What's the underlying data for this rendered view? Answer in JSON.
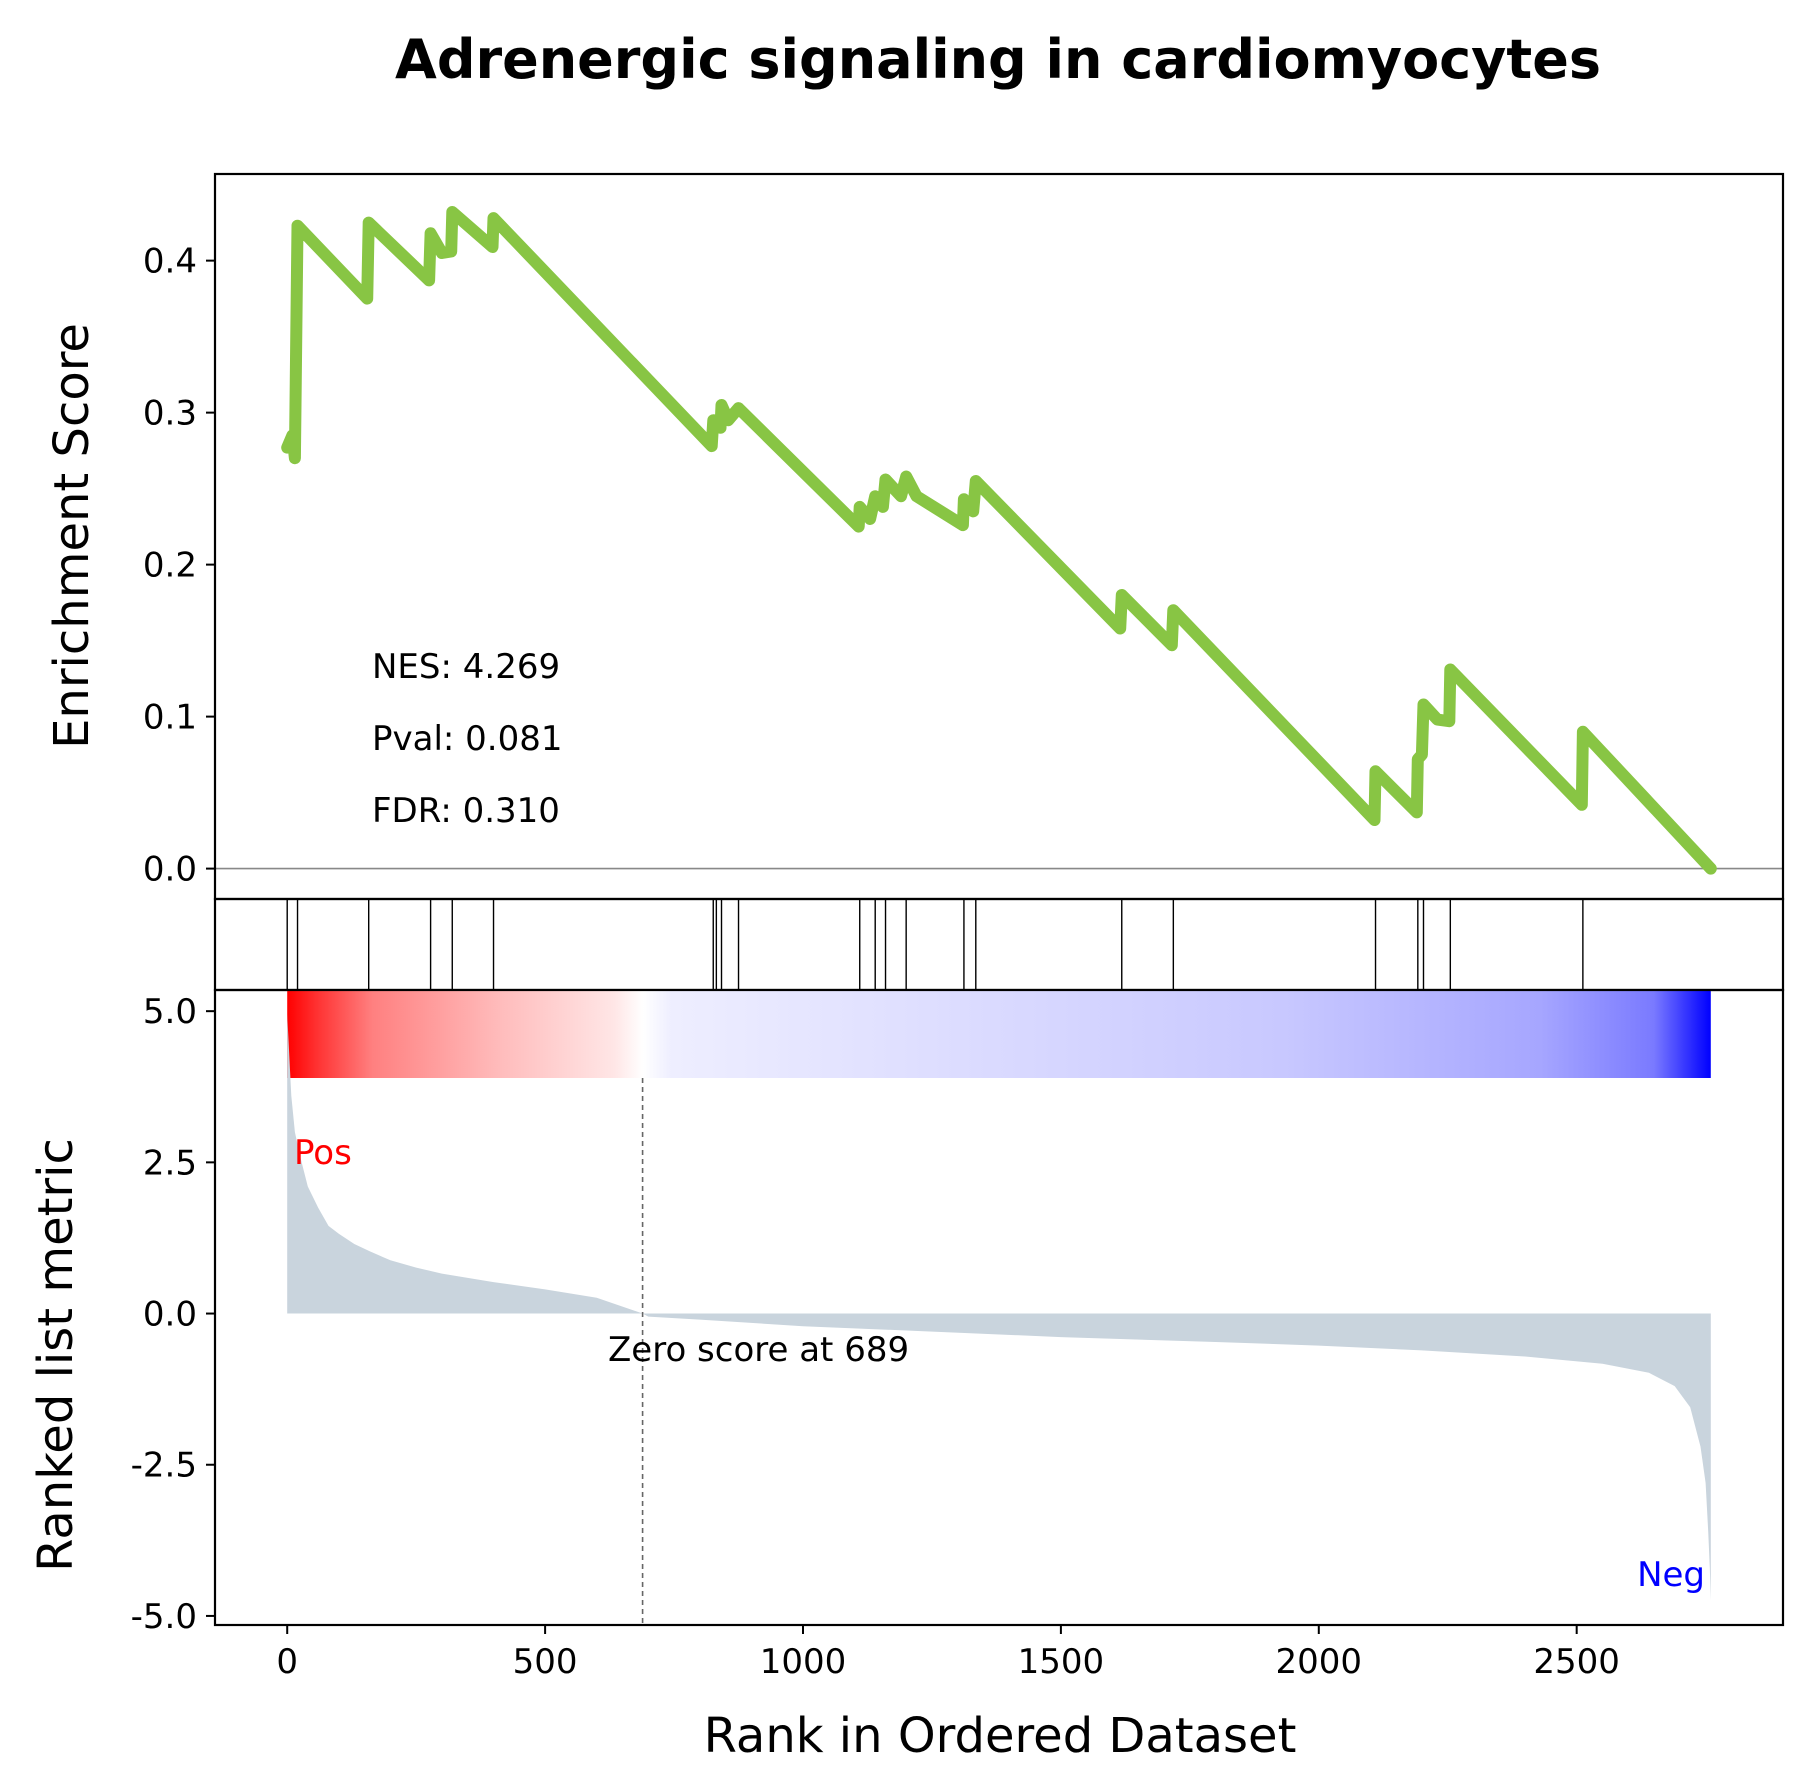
{
  "chart_data": {
    "type": "line",
    "title": "Adrenergic signaling in cardiomyocytes",
    "xlabel": "Rank in Ordered Dataset",
    "xlim": [
      -140,
      2900
    ],
    "xticks": [
      "0",
      "500",
      "1000",
      "1500",
      "2000",
      "2500"
    ],
    "xtick_values": [
      0,
      500,
      1000,
      1500,
      2000,
      2500
    ],
    "top_panel": {
      "ylabel": "Enrichment Score",
      "ylim": [
        -0.02,
        0.457
      ],
      "yticks": [
        "0.0",
        "0.1",
        "0.2",
        "0.3",
        "0.4"
      ],
      "ytick_values": [
        0,
        0.1,
        0.2,
        0.3,
        0.4
      ],
      "line_color": "#88c544",
      "zero_line": true,
      "running_es": [
        [
          0,
          0.277
        ],
        [
          10,
          0.285
        ],
        [
          15,
          0.27
        ],
        [
          20,
          0.423
        ],
        [
          155,
          0.375
        ],
        [
          158,
          0.425
        ],
        [
          275,
          0.387
        ],
        [
          278,
          0.418
        ],
        [
          300,
          0.405
        ],
        [
          318,
          0.406
        ],
        [
          320,
          0.432
        ],
        [
          398,
          0.409
        ],
        [
          400,
          0.428
        ],
        [
          823,
          0.278
        ],
        [
          826,
          0.295
        ],
        [
          840,
          0.29
        ],
        [
          842,
          0.305
        ],
        [
          855,
          0.295
        ],
        [
          875,
          0.303
        ],
        [
          1108,
          0.225
        ],
        [
          1110,
          0.238
        ],
        [
          1130,
          0.23
        ],
        [
          1140,
          0.245
        ],
        [
          1155,
          0.238
        ],
        [
          1160,
          0.256
        ],
        [
          1190,
          0.245
        ],
        [
          1200,
          0.258
        ],
        [
          1220,
          0.245
        ],
        [
          1310,
          0.226
        ],
        [
          1312,
          0.243
        ],
        [
          1330,
          0.235
        ],
        [
          1335,
          0.255
        ],
        [
          1615,
          0.158
        ],
        [
          1618,
          0.18
        ],
        [
          1715,
          0.147
        ],
        [
          1718,
          0.17
        ],
        [
          2108,
          0.032
        ],
        [
          2110,
          0.064
        ],
        [
          2190,
          0.037
        ],
        [
          2192,
          0.072
        ],
        [
          2200,
          0.075
        ],
        [
          2203,
          0.108
        ],
        [
          2230,
          0.098
        ],
        [
          2253,
          0.097
        ],
        [
          2255,
          0.131
        ],
        [
          2510,
          0.042
        ],
        [
          2512,
          0.09
        ],
        [
          2760,
          0.0
        ]
      ],
      "annotations": [
        "NES: 4.269",
        "Pval: 0.081",
        "FDR: 0.310"
      ]
    },
    "hits_panel": {
      "hit_ranks": [
        0,
        20,
        158,
        278,
        320,
        400,
        826,
        832,
        842,
        875,
        1110,
        1140,
        1160,
        1200,
        1312,
        1335,
        1618,
        1718,
        2110,
        2192,
        2203,
        2255,
        2512
      ]
    },
    "bottom_panel": {
      "ylabel": "Ranked list metric",
      "ylim": [
        -5.15,
        5.35
      ],
      "yticks": [
        "5.0",
        "2.5",
        "0.0",
        "-2.5",
        "-5.0"
      ],
      "ytick_values": [
        5,
        2.5,
        0,
        -2.5,
        -5
      ],
      "fill_color": "#c9d4dd",
      "metric_curve": [
        [
          0,
          4.95
        ],
        [
          8,
          3.6
        ],
        [
          15,
          3.0
        ],
        [
          25,
          2.6
        ],
        [
          40,
          2.1
        ],
        [
          60,
          1.75
        ],
        [
          80,
          1.45
        ],
        [
          100,
          1.32
        ],
        [
          130,
          1.15
        ],
        [
          160,
          1.03
        ],
        [
          200,
          0.88
        ],
        [
          250,
          0.76
        ],
        [
          300,
          0.66
        ],
        [
          400,
          0.52
        ],
        [
          500,
          0.4
        ],
        [
          600,
          0.26
        ],
        [
          689,
          0.0
        ],
        [
          700,
          -0.05
        ],
        [
          800,
          -0.1
        ],
        [
          1000,
          -0.21
        ],
        [
          1200,
          -0.28
        ],
        [
          1500,
          -0.39
        ],
        [
          1800,
          -0.47
        ],
        [
          2000,
          -0.53
        ],
        [
          2200,
          -0.61
        ],
        [
          2400,
          -0.71
        ],
        [
          2550,
          -0.83
        ],
        [
          2640,
          -0.98
        ],
        [
          2690,
          -1.2
        ],
        [
          2720,
          -1.55
        ],
        [
          2740,
          -2.2
        ],
        [
          2750,
          -2.8
        ],
        [
          2755,
          -3.6
        ],
        [
          2758,
          -4.2
        ],
        [
          2760,
          -4.75
        ]
      ],
      "zero_score_rank": 689,
      "zero_score_label": "Zero score at 689",
      "pos_label": "Pos",
      "neg_label": "Neg",
      "pos_color": "#ff0000",
      "neg_color": "#0000ff"
    }
  }
}
